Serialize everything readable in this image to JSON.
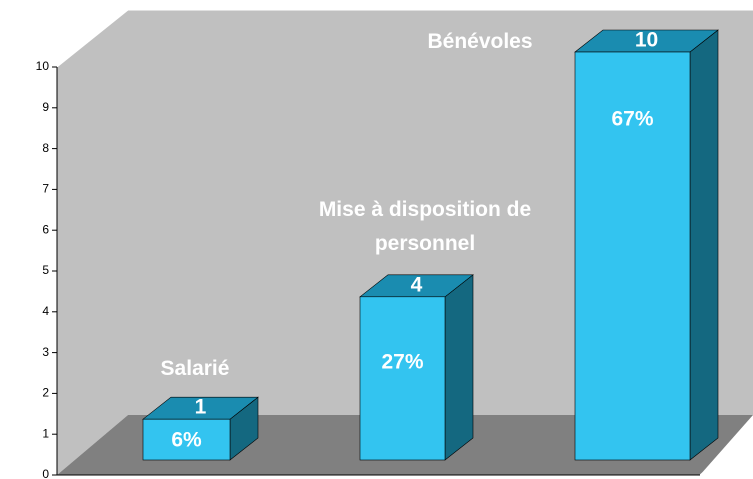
{
  "chart_data": {
    "type": "bar3d",
    "categories": [
      "Salarié",
      "Mise à disposition de personnel",
      "Bénévoles"
    ],
    "values": [
      1,
      4,
      10
    ],
    "percent_labels": [
      "6%",
      "27%",
      "67%"
    ],
    "color": "#33c4f0",
    "ylim": [
      0,
      10
    ],
    "yticks": [
      0,
      1,
      2,
      3,
      4,
      5,
      6,
      7,
      8,
      9,
      10
    ]
  }
}
